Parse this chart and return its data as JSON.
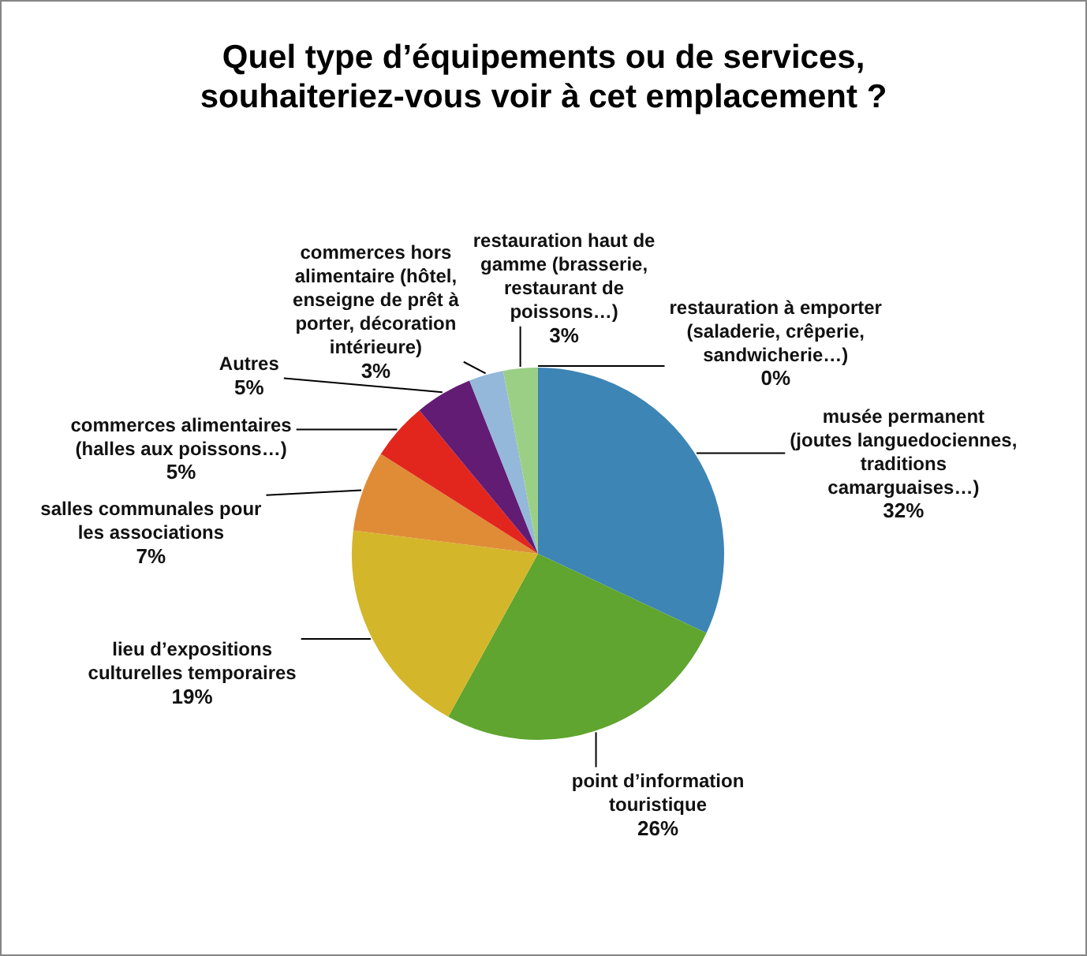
{
  "chart_data": {
    "type": "pie",
    "title": "Quel type d’équipements ou de services, souhaiteriez-vous voir à cet emplacement ?",
    "categories": [
      "musée permanent (joutes languedociennes, traditions camarguaises…)",
      "point d’information touristique",
      "lieu d’expositions culturelles temporaires",
      "salles communales pour les associations",
      "commerces alimentaires (halles aux poissons…)",
      "Autres",
      "commerces hors alimentaire (hôtel, enseigne de prêt à porter, décoration intérieure)",
      "restauration haut de gamme (brasserie, restaurant de poissons…)",
      "restauration à emporter (saladerie, crêperie, sandwicherie…)"
    ],
    "values": [
      32,
      26,
      19,
      7,
      5,
      5,
      3,
      3,
      0
    ],
    "colors": [
      "#3d85b5",
      "#5fa52f",
      "#d4b62a",
      "#e08c36",
      "#e2261e",
      "#631c74",
      "#94b8da",
      "#9ccf86",
      "#4bacc6"
    ],
    "value_labels": [
      "32%",
      "26%",
      "19%",
      "7%",
      "5%",
      "5%",
      "3%",
      "3%",
      "0%"
    ]
  }
}
